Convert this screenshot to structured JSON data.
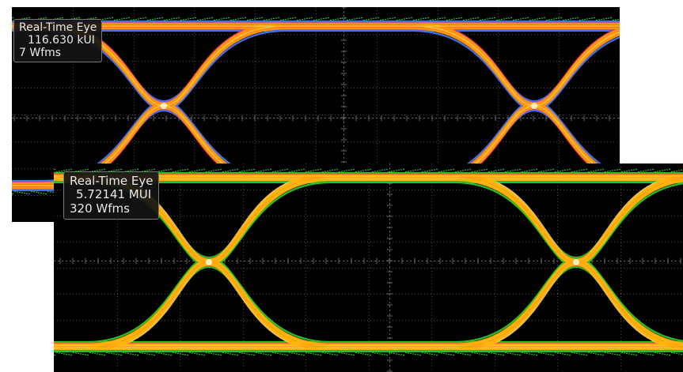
{
  "views": [
    {
      "title": "Real-Time Eye",
      "ui_count": "116.630 kUI",
      "waveforms": "7 Wfms",
      "palette": [
        "#ff6a00",
        "#ff9a10",
        "#d81c50",
        "#ffc840"
      ],
      "edge_colors": [
        "#4d7dff",
        "#c026ff",
        "#2fd62f"
      ]
    },
    {
      "title": "Real-Time Eye",
      "ui_count": "5.72141 MUI",
      "waveforms": "320 Wfms",
      "palette": [
        "#ffd23c",
        "#ffb000",
        "#ffee90",
        "#ff9a1a"
      ],
      "edge_colors": [
        "#2fd62f",
        "#d81c50",
        "#ffffff"
      ]
    }
  ],
  "colors": {
    "background": "#000000",
    "grid": "#6a6a6a",
    "readout_bg": "#141414",
    "readout_border": "#7a7a7a"
  }
}
